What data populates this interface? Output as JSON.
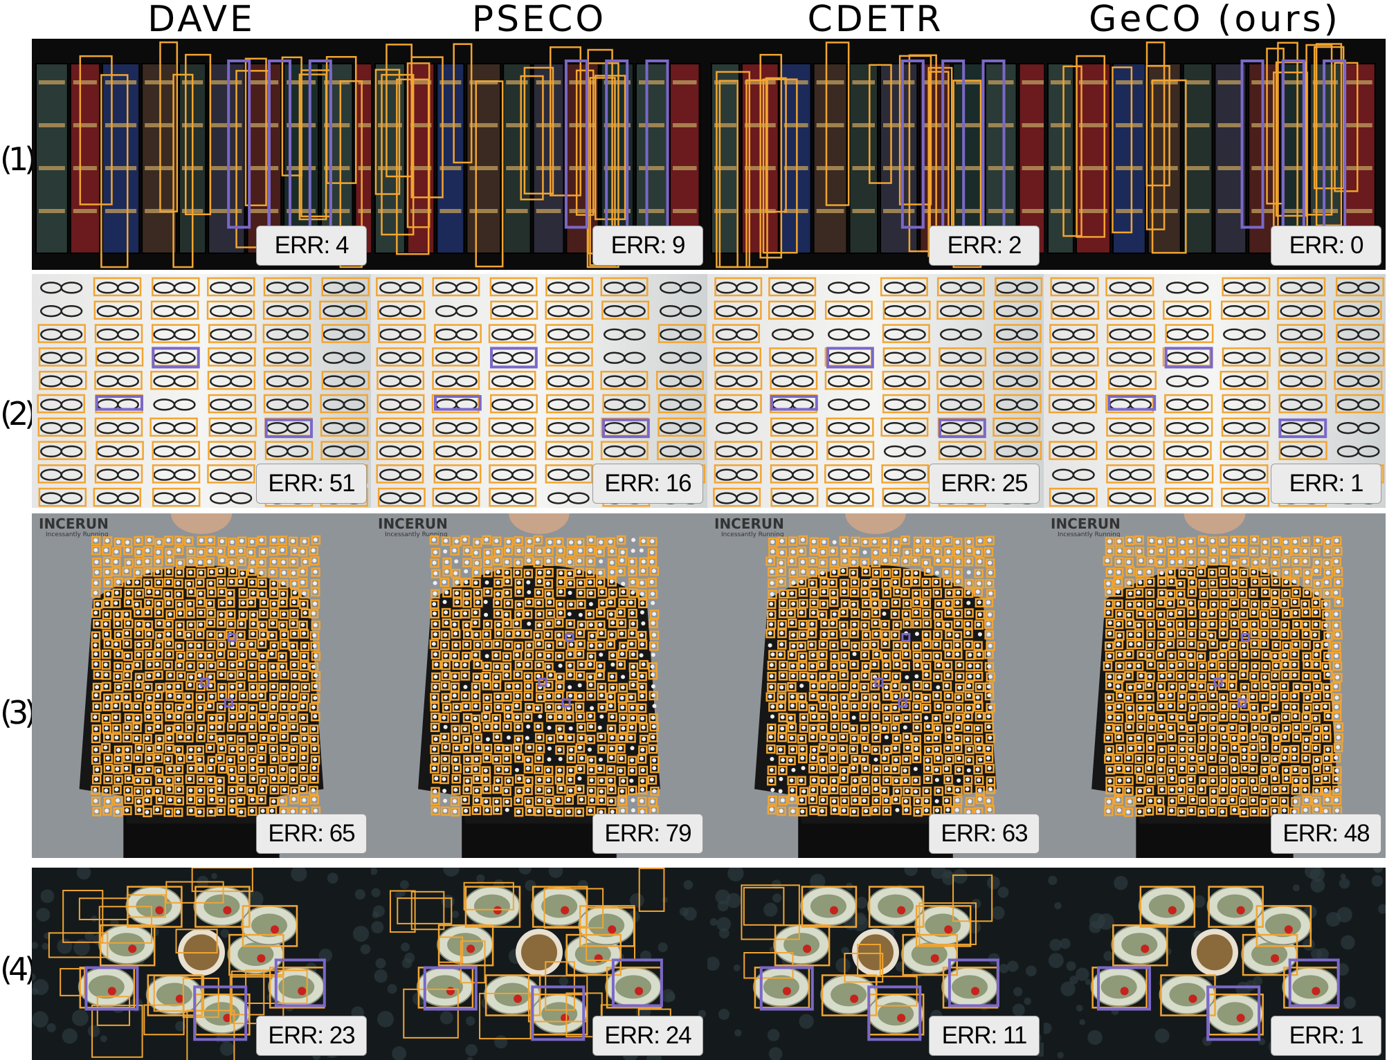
{
  "methods": [
    "DAVE",
    "PSECO",
    "CDETR",
    "GeCO (ours)"
  ],
  "rows": [
    {
      "label": "(1)",
      "scene": "book spines",
      "errors": [
        "ERR: 4",
        "ERR: 9",
        "ERR: 2",
        "ERR: 0"
      ]
    },
    {
      "label": "(2)",
      "scene": "eyeglasses",
      "errors": [
        "ERR: 51",
        "ERR: 16",
        "ERR: 25",
        "ERR: 1"
      ]
    },
    {
      "label": "(3)",
      "scene": "polka-dot shirt",
      "errors": [
        "ERR: 65",
        "ERR: 79",
        "ERR: 63",
        "ERR: 48"
      ]
    },
    {
      "label": "(4)",
      "scene": "oysters",
      "errors": [
        "ERR: 23",
        "ERR: 24",
        "ERR: 11",
        "ERR: 1"
      ]
    }
  ],
  "watermark": {
    "brand": "INCERUN",
    "tagline": "Incessantly Running"
  },
  "colors": {
    "detection": "#f2a531",
    "exemplar": "#7b68c8",
    "error_box": "#ebebeb"
  }
}
